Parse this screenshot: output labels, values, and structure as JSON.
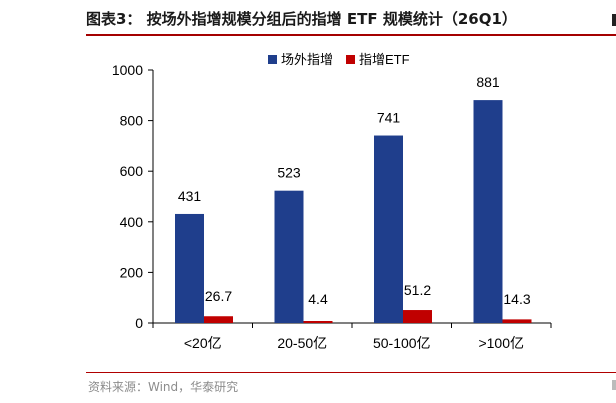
{
  "header": {
    "title": "图表3：  按场外指增规模分组后的指增 ETF 规模统计（26Q1）"
  },
  "footer": {
    "source": "资料来源：Wind，华泰研究"
  },
  "colors": {
    "series_1": "#1f3e8c",
    "series_2": "#c00000",
    "rule": "#a40000"
  },
  "chart_data": {
    "type": "bar",
    "categories": [
      "<20亿",
      "20-50亿",
      "50-100亿",
      ">100亿"
    ],
    "series": [
      {
        "name": "场外指增",
        "values": [
          431,
          523,
          741,
          881
        ],
        "labels": [
          "431",
          "523",
          "741",
          "881"
        ]
      },
      {
        "name": "指增ETF",
        "values": [
          26.7,
          4.4,
          51.2,
          14.3
        ],
        "labels": [
          "26.7",
          "4.4",
          "51.2",
          "14.3"
        ]
      }
    ],
    "yticks": [
      "0",
      "200",
      "400",
      "600",
      "800",
      "1000"
    ],
    "ylim": [
      0,
      1000
    ],
    "legend_position": "top",
    "grid": false
  }
}
